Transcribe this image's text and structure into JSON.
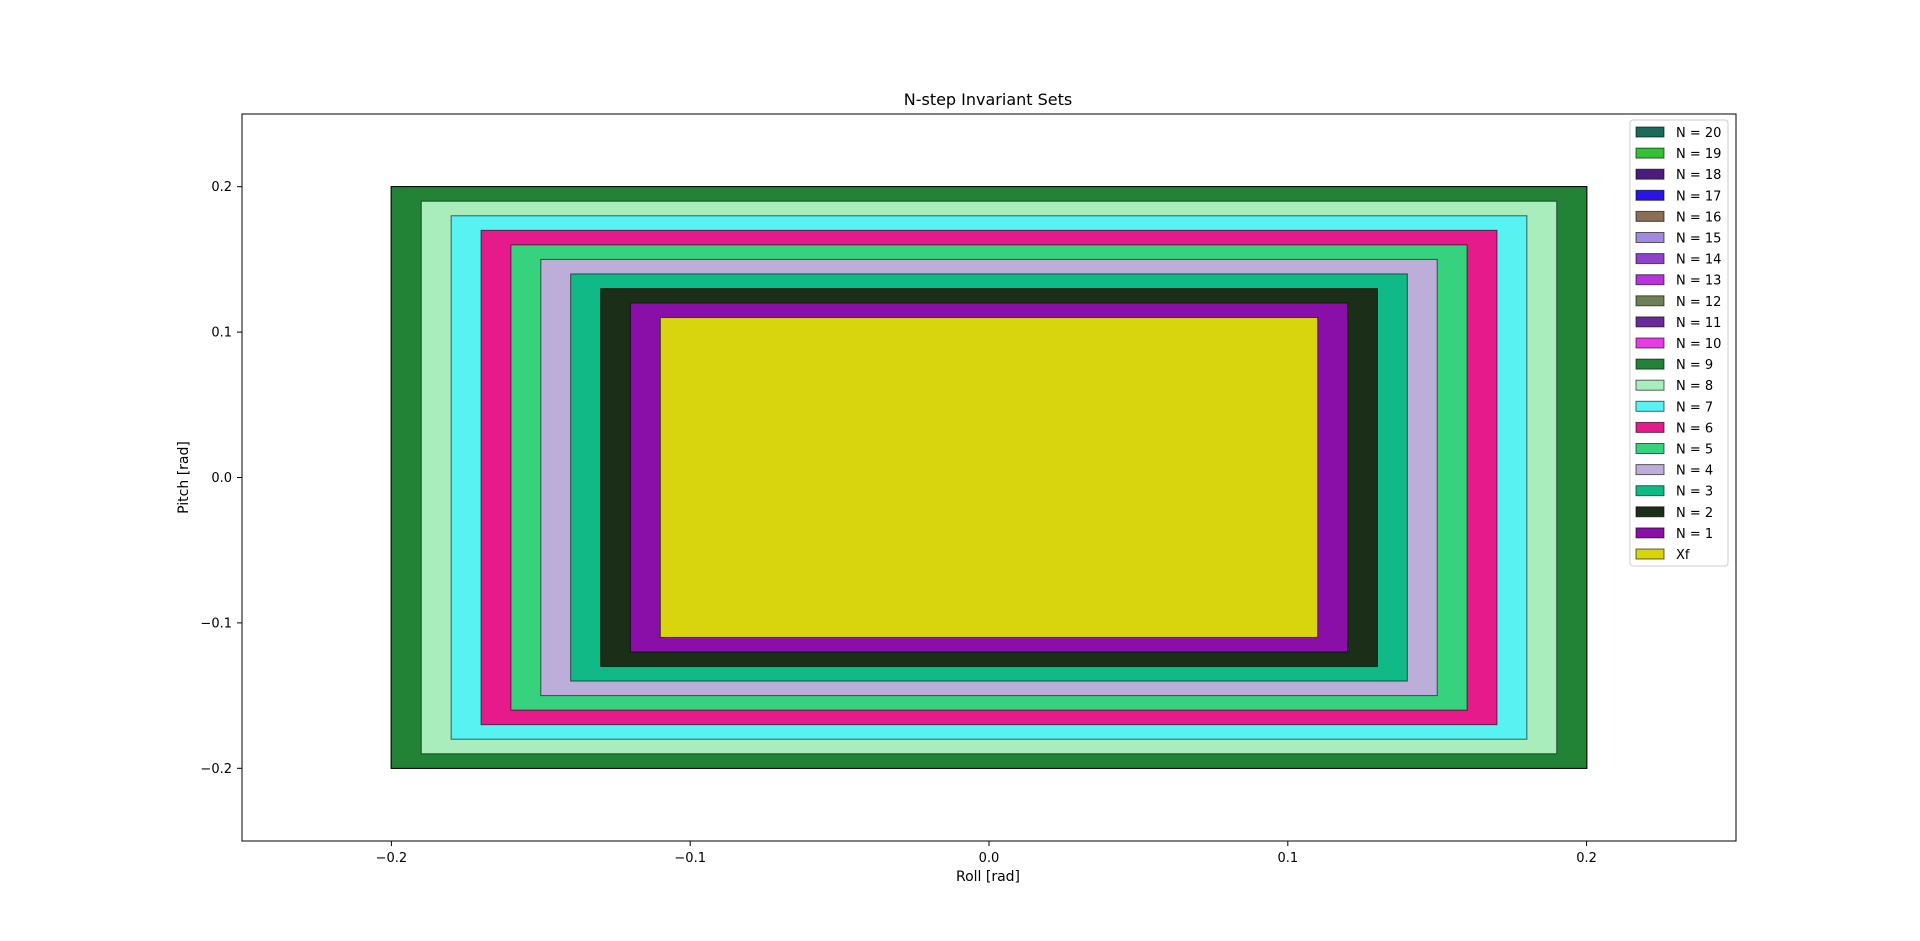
{
  "chart_data": {
    "type": "area",
    "title": "N-step Invariant Sets",
    "xlabel": "Roll [rad]",
    "ylabel": "Pitch [rad]",
    "xlim": [
      -0.25,
      0.25
    ],
    "ylim": [
      -0.25,
      0.25
    ],
    "xticks": [
      -0.2,
      -0.1,
      0.0,
      0.1,
      0.2
    ],
    "xtick_labels": [
      "−0.2",
      "−0.1",
      "0.0",
      "0.1",
      "0.2"
    ],
    "yticks": [
      -0.2,
      -0.1,
      0.0,
      0.1,
      0.2
    ],
    "ytick_labels": [
      "−0.2",
      "−0.1",
      "0.0",
      "0.1",
      "0.2"
    ],
    "grid": false,
    "legend_position": "top-right",
    "series": [
      {
        "name": "N = 20",
        "color": "#1a6b5a",
        "x": [
          -0.2,
          0.2
        ],
        "y": [
          -0.2,
          0.2
        ]
      },
      {
        "name": "N = 19",
        "color": "#33c233",
        "x": [
          -0.2,
          0.2
        ],
        "y": [
          -0.2,
          0.2
        ]
      },
      {
        "name": "N = 18",
        "color": "#4b1c7d",
        "x": [
          -0.2,
          0.2
        ],
        "y": [
          -0.2,
          0.2
        ]
      },
      {
        "name": "N = 17",
        "color": "#2a14e6",
        "x": [
          -0.2,
          0.2
        ],
        "y": [
          -0.2,
          0.2
        ]
      },
      {
        "name": "N = 16",
        "color": "#8a6e55",
        "x": [
          -0.2,
          0.2
        ],
        "y": [
          -0.2,
          0.2
        ]
      },
      {
        "name": "N = 15",
        "color": "#a08ae0",
        "x": [
          -0.2,
          0.2
        ],
        "y": [
          -0.2,
          0.2
        ]
      },
      {
        "name": "N = 14",
        "color": "#8e43c9",
        "x": [
          -0.2,
          0.2
        ],
        "y": [
          -0.2,
          0.2
        ]
      },
      {
        "name": "N = 13",
        "color": "#b832e0",
        "x": [
          -0.2,
          0.2
        ],
        "y": [
          -0.2,
          0.2
        ]
      },
      {
        "name": "N = 12",
        "color": "#6e8058",
        "x": [
          -0.2,
          0.2
        ],
        "y": [
          -0.2,
          0.2
        ]
      },
      {
        "name": "N = 11",
        "color": "#6a2a9a",
        "x": [
          -0.2,
          0.2
        ],
        "y": [
          -0.2,
          0.2
        ]
      },
      {
        "name": "N = 10",
        "color": "#e63ce6",
        "x": [
          -0.2,
          0.2
        ],
        "y": [
          -0.2,
          0.2
        ]
      },
      {
        "name": "N = 9",
        "color": "#228235",
        "x": [
          -0.2,
          0.2
        ],
        "y": [
          -0.2,
          0.2
        ]
      },
      {
        "name": "N = 8",
        "color": "#a8edbb",
        "x": [
          -0.19,
          0.19
        ],
        "y": [
          -0.19,
          0.19
        ]
      },
      {
        "name": "N = 7",
        "color": "#58f2f2",
        "x": [
          -0.18,
          0.18
        ],
        "y": [
          -0.18,
          0.18
        ]
      },
      {
        "name": "N = 6",
        "color": "#e61a8a",
        "x": [
          -0.17,
          0.17
        ],
        "y": [
          -0.17,
          0.17
        ]
      },
      {
        "name": "N = 5",
        "color": "#37d27d",
        "x": [
          -0.16,
          0.16
        ],
        "y": [
          -0.16,
          0.16
        ]
      },
      {
        "name": "N = 4",
        "color": "#bcaed8",
        "x": [
          -0.15,
          0.15
        ],
        "y": [
          -0.15,
          0.15
        ]
      },
      {
        "name": "N = 3",
        "color": "#0fba86",
        "x": [
          -0.14,
          0.14
        ],
        "y": [
          -0.14,
          0.14
        ]
      },
      {
        "name": "N = 2",
        "color": "#1b2e17",
        "x": [
          -0.13,
          0.13
        ],
        "y": [
          -0.13,
          0.13
        ]
      },
      {
        "name": "N = 1",
        "color": "#8a0fa8",
        "x": [
          -0.12,
          0.12
        ],
        "y": [
          -0.12,
          0.12
        ]
      },
      {
        "name": "Xf",
        "color": "#d8d50f",
        "x": [
          -0.11,
          0.11
        ],
        "y": [
          -0.11,
          0.11
        ]
      }
    ]
  }
}
